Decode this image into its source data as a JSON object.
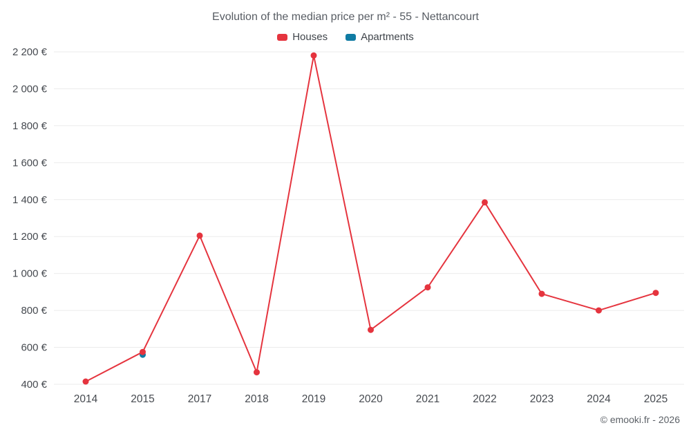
{
  "chart_data": {
    "type": "line",
    "title": "Evolution of the median price per m² - 55 - Nettancourt",
    "categories": [
      "2014",
      "2015",
      "2017",
      "2018",
      "2019",
      "2020",
      "2021",
      "2022",
      "2023",
      "2024",
      "2025"
    ],
    "series": [
      {
        "name": "Houses",
        "color": "#e5343e",
        "values": [
          415,
          575,
          1205,
          465,
          2180,
          695,
          925,
          1385,
          890,
          800,
          895
        ]
      },
      {
        "name": "Apartments",
        "color": "#0f7ba3",
        "values": [
          null,
          560,
          null,
          null,
          null,
          null,
          null,
          null,
          null,
          null,
          null
        ]
      }
    ],
    "ylim": [
      400,
      2200
    ],
    "yticks": [
      {
        "value": 400,
        "label": "400 €"
      },
      {
        "value": 600,
        "label": "600 €"
      },
      {
        "value": 800,
        "label": "800 €"
      },
      {
        "value": 1000,
        "label": "1 000 €"
      },
      {
        "value": 1200,
        "label": "1 200 €"
      },
      {
        "value": 1400,
        "label": "1 400 €"
      },
      {
        "value": 1600,
        "label": "1 600 €"
      },
      {
        "value": 1800,
        "label": "1 800 €"
      },
      {
        "value": 2000,
        "label": "2 000 €"
      },
      {
        "value": 2200,
        "label": "2 200 €"
      }
    ],
    "grid": "horizontal",
    "legend_position": "top",
    "grid_color": "#ebebeb",
    "axis_label_color": "#45494f"
  },
  "attribution": "© emooki.fr - 2026"
}
